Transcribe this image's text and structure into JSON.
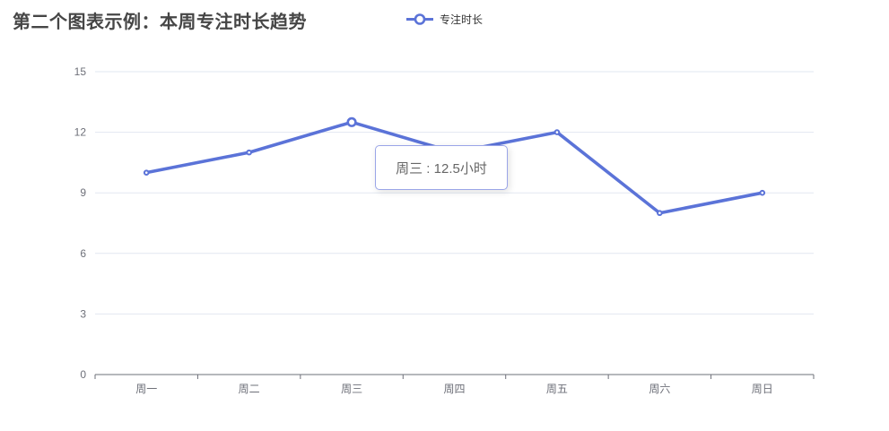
{
  "header": {
    "title": "第二个图表示例：本周专注时长趋势"
  },
  "legend": {
    "items": [
      {
        "label": "专注时长",
        "color": "#5b73d8",
        "icon": "line-series-icon"
      }
    ]
  },
  "tooltip": {
    "text": "周三 : 12.5小时",
    "category": "周三",
    "value": "12.5",
    "unit": "小时",
    "background": "#ffffff",
    "border_color": "#9aa5e8",
    "text_color": "#666666"
  },
  "chart_data": {
    "type": "line",
    "title": "第二个图表示例：本周专注时长趋势",
    "categories": [
      "周一",
      "周二",
      "周三",
      "周四",
      "周五",
      "周六",
      "周日"
    ],
    "series": [
      {
        "name": "专注时长",
        "color": "#5b73d8",
        "values": [
          10,
          11,
          12.5,
          11,
          12,
          8,
          9
        ]
      }
    ],
    "xlabel": "",
    "ylabel": "",
    "ylim": [
      0,
      15
    ],
    "yticks": [
      0,
      3,
      6,
      9,
      12,
      15
    ],
    "grid": true,
    "legend_position": "top-center",
    "highlight": {
      "index": 2,
      "category": "周三",
      "value": 12.5,
      "label": "周三 : 12.5小时"
    }
  },
  "colors": {
    "line": "#5b73d8",
    "gridline": "#e2e7f1",
    "axis_line": "#6e7079",
    "axis_label": "#6e7079",
    "title": "#464646",
    "legend_text": "#333333",
    "background": "#ffffff"
  }
}
